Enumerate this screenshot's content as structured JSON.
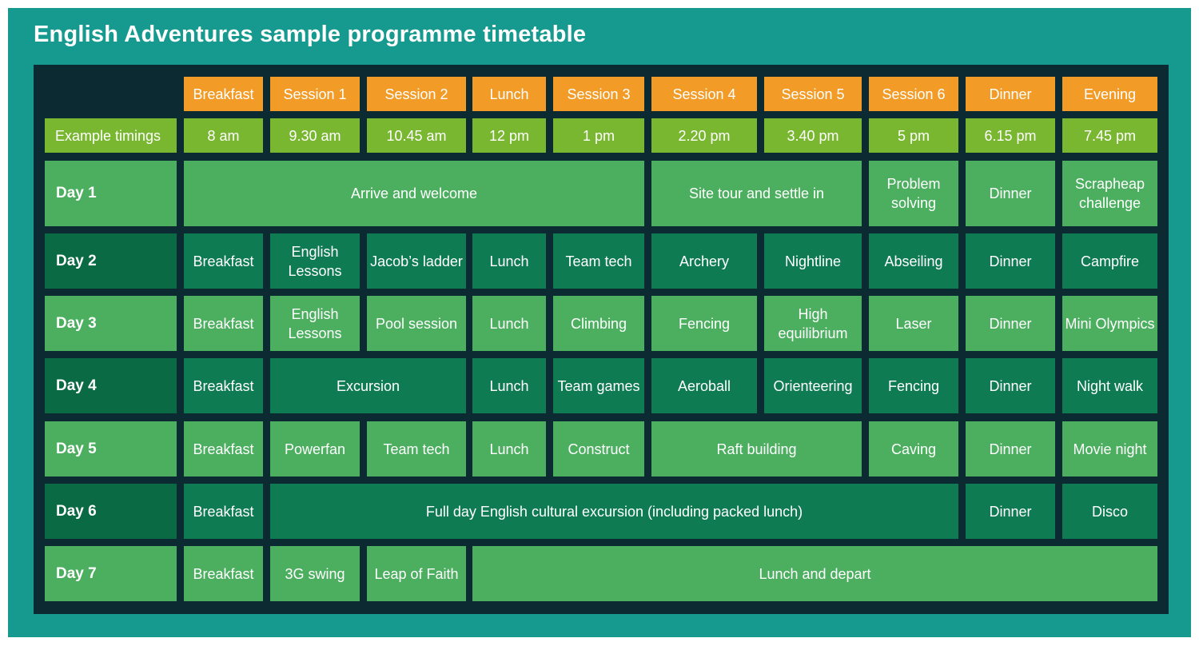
{
  "title": "English Adventures sample programme timetable",
  "headers": [
    "Breakfast",
    "Session 1",
    "Session 2",
    "Lunch",
    "Session 3",
    "Session 4",
    "Session 5",
    "Session 6",
    "Dinner",
    "Evening"
  ],
  "timings_label": "Example timings",
  "timings": [
    "8 am",
    "9.30 am",
    "10.45 am",
    "12 pm",
    "1 pm",
    "2.20 pm",
    "3.40 pm",
    "5 pm",
    "6.15 pm",
    "7.45 pm"
  ],
  "days": [
    {
      "label": "Day 1",
      "shade": "light",
      "cells": [
        {
          "text": "Arrive and welcome",
          "span": 5
        },
        {
          "text": "Site tour and settle in",
          "span": 2
        },
        {
          "text": "Problem solving",
          "span": 1
        },
        {
          "text": "Dinner",
          "span": 1
        },
        {
          "text": "Scrapheap challenge",
          "span": 1
        }
      ]
    },
    {
      "label": "Day 2",
      "shade": "dark",
      "cells": [
        {
          "text": "Breakfast",
          "span": 1
        },
        {
          "text": "English Lessons",
          "span": 1
        },
        {
          "text": "Jacob’s ladder",
          "span": 1
        },
        {
          "text": "Lunch",
          "span": 1
        },
        {
          "text": "Team tech",
          "span": 1
        },
        {
          "text": "Archery",
          "span": 1
        },
        {
          "text": "Nightline",
          "span": 1
        },
        {
          "text": "Abseiling",
          "span": 1
        },
        {
          "text": "Dinner",
          "span": 1
        },
        {
          "text": "Campfire",
          "span": 1
        }
      ]
    },
    {
      "label": "Day 3",
      "shade": "light",
      "cells": [
        {
          "text": "Breakfast",
          "span": 1
        },
        {
          "text": "English Lessons",
          "span": 1
        },
        {
          "text": "Pool session",
          "span": 1
        },
        {
          "text": "Lunch",
          "span": 1
        },
        {
          "text": "Climbing",
          "span": 1
        },
        {
          "text": "Fencing",
          "span": 1
        },
        {
          "text": "High equilibrium",
          "span": 1
        },
        {
          "text": "Laser",
          "span": 1
        },
        {
          "text": "Dinner",
          "span": 1
        },
        {
          "text": "Mini Olympics",
          "span": 1
        }
      ]
    },
    {
      "label": "Day 4",
      "shade": "dark",
      "cells": [
        {
          "text": "Breakfast",
          "span": 1
        },
        {
          "text": "Excursion",
          "span": 2
        },
        {
          "text": "Lunch",
          "span": 1
        },
        {
          "text": "Team games",
          "span": 1
        },
        {
          "text": "Aeroball",
          "span": 1
        },
        {
          "text": "Orienteering",
          "span": 1
        },
        {
          "text": "Fencing",
          "span": 1
        },
        {
          "text": "Dinner",
          "span": 1
        },
        {
          "text": "Night walk",
          "span": 1
        }
      ]
    },
    {
      "label": "Day 5",
      "shade": "light",
      "cells": [
        {
          "text": "Breakfast",
          "span": 1
        },
        {
          "text": "Powerfan",
          "span": 1
        },
        {
          "text": "Team tech",
          "span": 1
        },
        {
          "text": "Lunch",
          "span": 1
        },
        {
          "text": "Construct",
          "span": 1
        },
        {
          "text": "Raft building",
          "span": 2
        },
        {
          "text": "Caving",
          "span": 1
        },
        {
          "text": "Dinner",
          "span": 1
        },
        {
          "text": "Movie night",
          "span": 1
        }
      ]
    },
    {
      "label": "Day 6",
      "shade": "dark",
      "cells": [
        {
          "text": "Breakfast",
          "span": 1
        },
        {
          "text": "Full day English cultural excursion (including packed lunch)",
          "span": 7
        },
        {
          "text": "Dinner",
          "span": 1
        },
        {
          "text": "Disco",
          "span": 1
        }
      ]
    },
    {
      "label": "Day 7",
      "shade": "light",
      "cells": [
        {
          "text": "Breakfast",
          "span": 1
        },
        {
          "text": "3G swing",
          "span": 1
        },
        {
          "text": "Leap of Faith",
          "span": 1
        },
        {
          "text": "Lunch and depart",
          "span": 7
        }
      ]
    }
  ]
}
